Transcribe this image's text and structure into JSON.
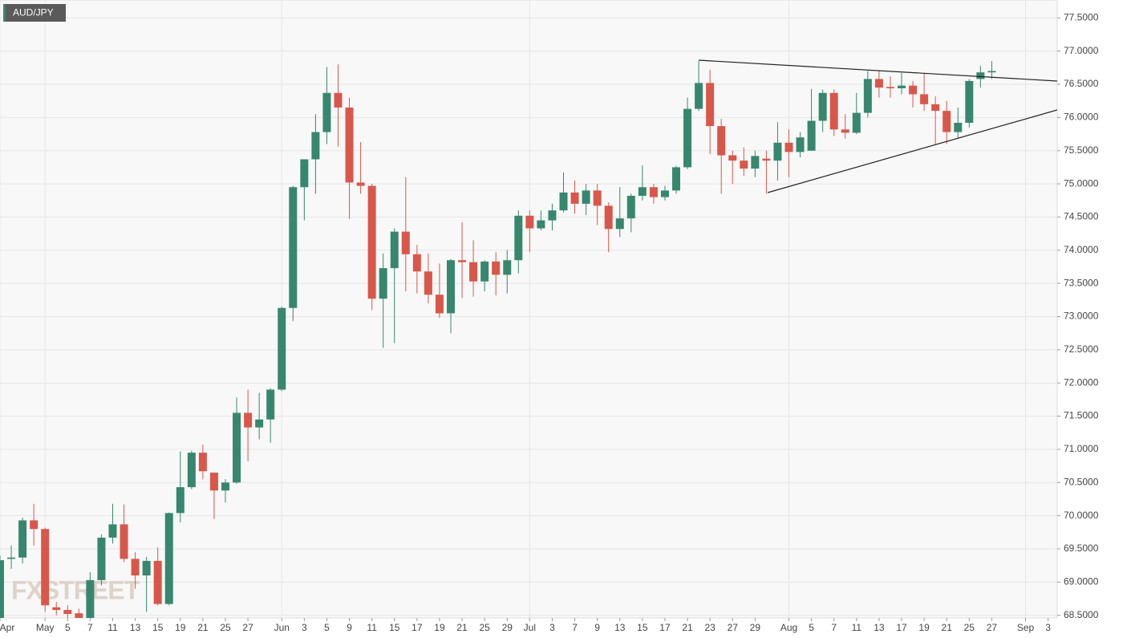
{
  "chart_data": {
    "type": "candlestick",
    "title": "AUD/JPY",
    "watermark": "FXSTREET",
    "categories": [
      "Apr",
      null,
      null,
      null,
      "May",
      null,
      "5",
      null,
      "7",
      null,
      "11",
      null,
      "13",
      null,
      "15",
      null,
      "19",
      null,
      "21",
      null,
      "25",
      null,
      "27",
      null,
      null,
      "Jun",
      null,
      "3",
      null,
      "5",
      null,
      "9",
      null,
      "11",
      null,
      "15",
      null,
      "17",
      null,
      "19",
      null,
      "21",
      null,
      "25",
      null,
      "29",
      null,
      "Jul",
      null,
      "3",
      null,
      "7",
      null,
      "9",
      null,
      "13",
      null,
      "15",
      null,
      "17",
      null,
      "21",
      null,
      "23",
      null,
      "27",
      null,
      "29",
      null,
      null,
      "Aug",
      null,
      "5",
      null,
      "7",
      null,
      "11",
      null,
      "13",
      null,
      "17",
      null,
      "19",
      null,
      "21",
      null,
      "25",
      null,
      "27",
      null,
      null,
      "Sep",
      null,
      "3"
    ],
    "open": [
      68.4,
      69.35,
      69.37,
      69.93,
      69.8,
      68.62,
      68.58,
      68.53,
      68.45,
      69.03,
      69.67,
      69.87,
      69.35,
      69.1,
      69.32,
      68.67,
      70.04,
      70.43,
      70.95,
      70.65,
      70.38,
      70.5,
      71.55,
      71.33,
      71.45,
      71.9,
      73.13,
      74.95,
      75.37,
      75.78,
      76.37,
      76.15,
      75.02,
      74.97,
      73.27,
      73.73,
      74.28,
      73.94,
      73.68,
      73.33,
      73.05,
      73.85,
      73.82,
      73.53,
      73.83,
      73.63,
      73.85,
      74.52,
      74.33,
      74.45,
      74.6,
      74.87,
      74.7,
      74.9,
      74.67,
      74.32,
      74.48,
      74.82,
      74.95,
      74.8,
      74.9,
      75.25,
      76.13,
      76.52,
      75.87,
      75.43,
      75.35,
      75.23,
      75.38,
      75.35,
      75.62,
      75.48,
      75.5,
      75.95,
      76.37,
      75.82,
      75.77,
      76.07,
      76.58,
      76.46,
      76.44,
      76.48,
      76.35,
      76.2,
      76.1,
      75.78,
      75.92,
      76.58,
      76.68,
      null,
      null,
      null,
      null,
      null
    ],
    "high": [
      69.4,
      69.55,
      69.97,
      70.18,
      69.82,
      68.7,
      68.65,
      68.6,
      69.15,
      69.72,
      70.18,
      70.17,
      69.45,
      69.38,
      69.52,
      70.05,
      70.97,
      70.98,
      71.07,
      70.65,
      70.55,
      71.78,
      71.9,
      71.85,
      71.92,
      73.15,
      74.97,
      75.37,
      76.05,
      76.76,
      76.8,
      76.3,
      75.63,
      75.0,
      73.95,
      74.33,
      75.1,
      74.08,
      73.95,
      73.8,
      73.87,
      74.42,
      74.15,
      73.85,
      73.97,
      74.0,
      74.6,
      74.6,
      74.6,
      74.7,
      75.17,
      75.05,
      75.0,
      75.0,
      74.72,
      74.95,
      74.85,
      75.28,
      75.0,
      74.97,
      75.27,
      76.3,
      76.85,
      76.72,
      75.98,
      75.5,
      75.55,
      75.5,
      75.5,
      75.93,
      75.82,
      75.78,
      76.43,
      76.42,
      76.42,
      76.05,
      76.37,
      76.7,
      76.7,
      76.62,
      76.67,
      76.55,
      76.67,
      76.32,
      76.25,
      76.15,
      76.58,
      76.78,
      76.85,
      null,
      null,
      null,
      null,
      null
    ],
    "low": [
      68.3,
      69.2,
      69.28,
      69.55,
      68.55,
      68.5,
      68.45,
      68.4,
      68.4,
      68.95,
      69.58,
      69.3,
      68.9,
      68.55,
      68.65,
      68.65,
      69.9,
      70.4,
      70.55,
      69.95,
      70.2,
      70.48,
      70.82,
      71.15,
      71.1,
      71.88,
      72.93,
      74.45,
      74.85,
      75.6,
      75.56,
      74.47,
      74.85,
      73.1,
      72.53,
      72.6,
      73.38,
      73.35,
      73.2,
      72.98,
      72.75,
      73.28,
      73.3,
      73.38,
      73.32,
      73.35,
      73.65,
      73.97,
      74.3,
      74.3,
      74.57,
      74.55,
      74.53,
      74.38,
      73.97,
      74.2,
      74.27,
      74.75,
      74.7,
      74.75,
      74.85,
      75.22,
      76.1,
      75.45,
      74.85,
      75.0,
      75.12,
      75.1,
      74.85,
      75.05,
      75.1,
      75.4,
      75.5,
      75.78,
      75.72,
      75.68,
      75.75,
      76.0,
      76.3,
      76.3,
      76.35,
      76.15,
      76.1,
      75.6,
      75.6,
      75.68,
      75.85,
      76.45,
      76.58,
      null,
      null,
      null,
      null,
      null
    ],
    "close": [
      69.33,
      69.37,
      69.93,
      69.8,
      68.65,
      68.58,
      68.52,
      68.45,
      69.03,
      69.67,
      69.87,
      69.35,
      69.1,
      69.32,
      68.67,
      70.04,
      70.43,
      70.95,
      70.67,
      70.38,
      70.5,
      71.55,
      71.33,
      71.45,
      71.9,
      73.13,
      74.95,
      75.37,
      75.78,
      76.37,
      76.15,
      75.02,
      74.97,
      73.27,
      73.73,
      74.28,
      73.94,
      73.68,
      73.33,
      73.05,
      73.85,
      73.82,
      73.53,
      73.83,
      73.63,
      73.85,
      74.52,
      74.33,
      74.45,
      74.6,
      74.87,
      74.7,
      74.9,
      74.67,
      74.32,
      74.48,
      74.82,
      74.95,
      74.8,
      74.9,
      75.25,
      76.13,
      76.52,
      75.87,
      75.43,
      75.35,
      75.23,
      75.42,
      75.35,
      75.62,
      75.48,
      75.7,
      75.95,
      76.37,
      75.82,
      75.77,
      76.07,
      76.58,
      76.45,
      76.44,
      76.48,
      76.35,
      76.2,
      76.1,
      75.78,
      75.92,
      76.55,
      76.68,
      76.7,
      null,
      null,
      null,
      null,
      null
    ],
    "up_color": "#37876f",
    "down_color": "#d9574a",
    "ylim": [
      68.46,
      77.77
    ],
    "yticks": [
      {
        "value": 68.5,
        "label": "68.5000"
      },
      {
        "value": 69,
        "label": "69.0000"
      },
      {
        "value": 69.5,
        "label": "69.5000"
      },
      {
        "value": 70,
        "label": "70.0000"
      },
      {
        "value": 70.5,
        "label": "70.5000"
      },
      {
        "value": 71,
        "label": "71.0000"
      },
      {
        "value": 71.5,
        "label": "71.5000"
      },
      {
        "value": 72,
        "label": "72.0000"
      },
      {
        "value": 72.5,
        "label": "72.5000"
      },
      {
        "value": 73,
        "label": "73.0000"
      },
      {
        "value": 73.5,
        "label": "73.5000"
      },
      {
        "value": 74,
        "label": "74.0000"
      },
      {
        "value": 74.5,
        "label": "74.5000"
      },
      {
        "value": 75,
        "label": "75.0000"
      },
      {
        "value": 75.5,
        "label": "75.5000"
      },
      {
        "value": 76,
        "label": "76.0000"
      },
      {
        "value": 76.5,
        "label": "76.5000"
      },
      {
        "value": 77,
        "label": "77.0000"
      },
      {
        "value": 77.5,
        "label": "77.5000"
      }
    ],
    "grid": true,
    "month_grid": true
  }
}
